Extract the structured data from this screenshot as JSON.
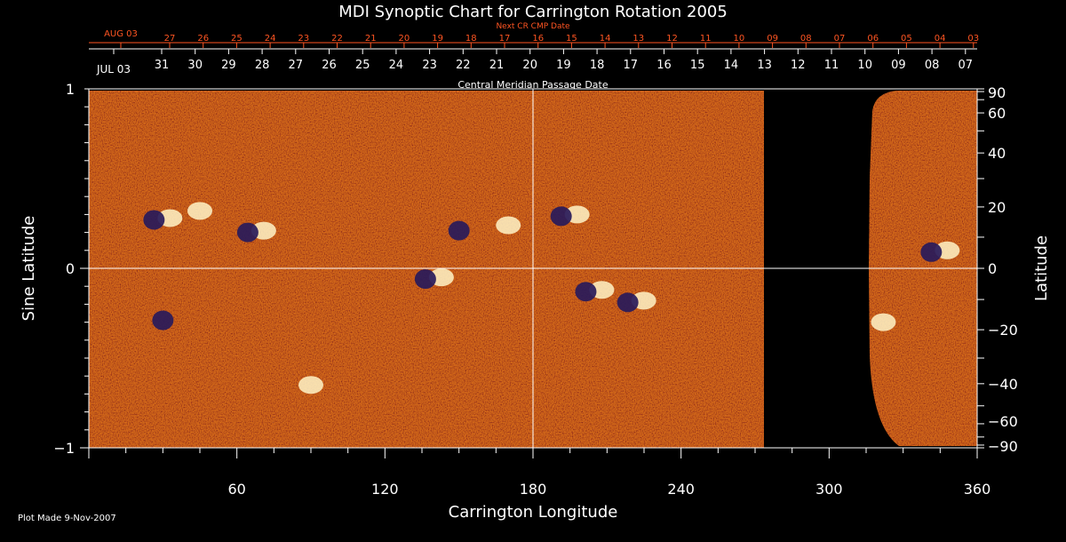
{
  "chart_data": {
    "type": "heatmap",
    "title": "MDI Synoptic Chart for Carrington Rotation 2005",
    "xlabel": "Carrington Longitude",
    "ylabel_left": "Sine Latitude",
    "ylabel_right": "Latitude",
    "top_axis_label": "Central Meridian Passage Date",
    "next_cr_axis_label": "Next CR CMP Date",
    "xlim": [
      0,
      360
    ],
    "ylim": [
      -1,
      1
    ],
    "x_ticks": [
      60,
      120,
      180,
      240,
      300,
      360
    ],
    "y_ticks_left": [
      -1,
      0,
      1
    ],
    "y_ticks_left_labels": [
      "−1",
      "0",
      "1"
    ],
    "y_ticks_right": [
      -90,
      -60,
      -40,
      -20,
      0,
      20,
      40,
      60,
      90
    ],
    "y_ticks_right_labels": [
      "−90",
      "−60",
      "−40",
      "−20",
      "0",
      "20",
      "40",
      "60",
      "90"
    ],
    "cmp_dates": [
      "JUL 03",
      "31",
      "30",
      "29",
      "28",
      "27",
      "26",
      "25",
      "24",
      "23",
      "22",
      "21",
      "20",
      "19",
      "18",
      "17",
      "16",
      "15",
      "14",
      "13",
      "12",
      "11",
      "10",
      "09",
      "08",
      "07"
    ],
    "next_cr_dates": [
      "AUG 03",
      "27",
      "26",
      "25",
      "24",
      "23",
      "22",
      "21",
      "20",
      "19",
      "18",
      "17",
      "16",
      "15",
      "14",
      "13",
      "12",
      "11",
      "10",
      "09",
      "08",
      "07",
      "06",
      "05",
      "04",
      "03"
    ],
    "data_gap_longitude": [
      272,
      318
    ],
    "features": [
      {
        "lon": 30,
        "sinlat": 0.28,
        "polarity": "mixed"
      },
      {
        "lon": 45,
        "sinlat": 0.32,
        "polarity": "positive"
      },
      {
        "lon": 68,
        "sinlat": 0.21,
        "polarity": "mixed"
      },
      {
        "lon": 150,
        "sinlat": 0.22,
        "polarity": "negative"
      },
      {
        "lon": 170,
        "sinlat": 0.24,
        "polarity": "positive"
      },
      {
        "lon": 195,
        "sinlat": 0.3,
        "polarity": "mixed"
      },
      {
        "lon": 140,
        "sinlat": -0.05,
        "polarity": "mixed"
      },
      {
        "lon": 205,
        "sinlat": -0.12,
        "polarity": "mixed"
      },
      {
        "lon": 222,
        "sinlat": -0.18,
        "polarity": "mixed"
      },
      {
        "lon": 30,
        "sinlat": -0.28,
        "polarity": "negative"
      },
      {
        "lon": 90,
        "sinlat": -0.65,
        "polarity": "positive"
      },
      {
        "lon": 345,
        "sinlat": 0.1,
        "polarity": "mixed"
      },
      {
        "lon": 322,
        "sinlat": -0.3,
        "polarity": "positive"
      }
    ]
  },
  "footer": {
    "plot_made": "Plot Made  9-Nov-2007"
  },
  "colors": {
    "background": "#000000",
    "axis": "#ffffff",
    "next_cr_axis": "#ff5522",
    "field_base": "#d84a10",
    "positive_polarity": "#fff4c8",
    "negative_polarity": "#281a5a"
  }
}
